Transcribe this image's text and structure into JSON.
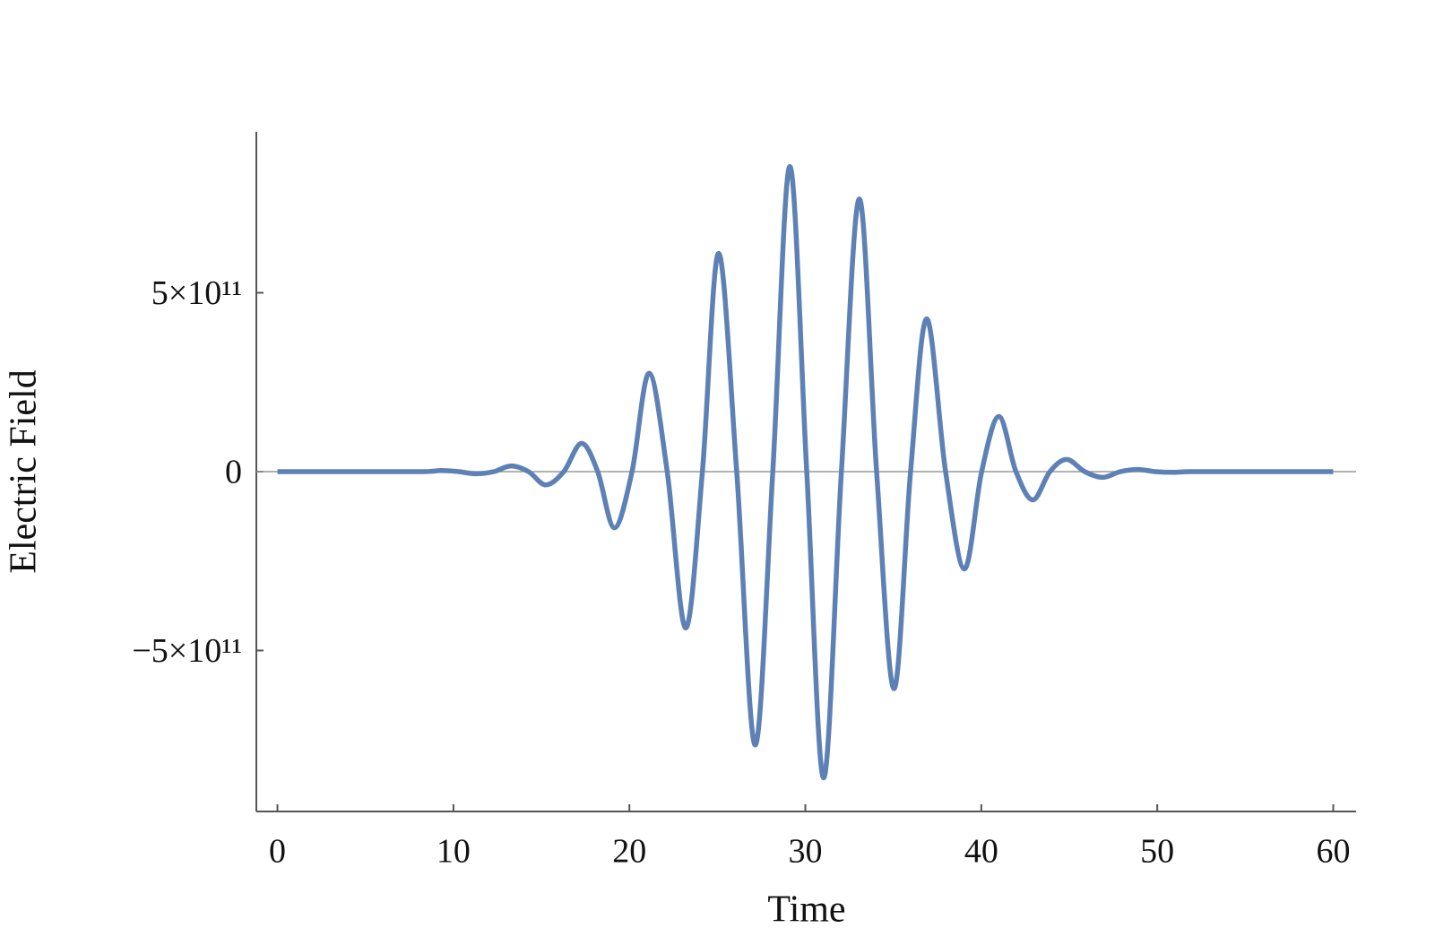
{
  "chart_data": {
    "type": "line",
    "xlabel": "Time",
    "ylabel": "Electric Field",
    "xlim": [
      -1.2,
      61.3
    ],
    "ylim": [
      -950000000000,
      950000000000
    ],
    "xticks": [
      0,
      10,
      20,
      30,
      40,
      50,
      60
    ],
    "yticks": [
      {
        "value": -500000000000,
        "label": "−5×10¹¹"
      },
      0,
      {
        "value": 500000000000,
        "label": "5×10¹¹"
      }
    ],
    "series": [
      {
        "color": "#5e81b5",
        "x": [
          0,
          5,
          8.3,
          9.3,
          10.3,
          11.3,
          12.3,
          13.28,
          14.27,
          15.25,
          16.27,
          17.28,
          18.2,
          19.15,
          20.15,
          21.12,
          22.15,
          23.2,
          24.15,
          25.07,
          26.1,
          27.15,
          28.15,
          29.12,
          30.08,
          31.04,
          32.05,
          33.07,
          34.05,
          35.04,
          35.98,
          36.9,
          37.97,
          39.04,
          40.02,
          41.0,
          41.97,
          42.93,
          43.9,
          44.85,
          45.88,
          46.9,
          47.9,
          48.9,
          49.9,
          50.9,
          51.9,
          55,
          60
        ],
        "values": [
          0,
          0,
          0,
          3000000000,
          0,
          -6000000000,
          0,
          16000000000,
          0,
          -37000000000,
          0,
          79000000000,
          0,
          -157000000000,
          0,
          275000000000,
          0,
          -437000000000,
          0,
          610000000000,
          0,
          -764000000000,
          0,
          853000000000,
          0,
          -856000000000,
          0,
          762000000000,
          0,
          -607000000000,
          0,
          427000000000,
          0,
          -272000000000,
          0,
          154000000000,
          0,
          -79000000000,
          0,
          34000000000,
          0,
          -16000000000,
          0,
          6000000000,
          0,
          -2000000000,
          0,
          0,
          0
        ]
      }
    ]
  }
}
